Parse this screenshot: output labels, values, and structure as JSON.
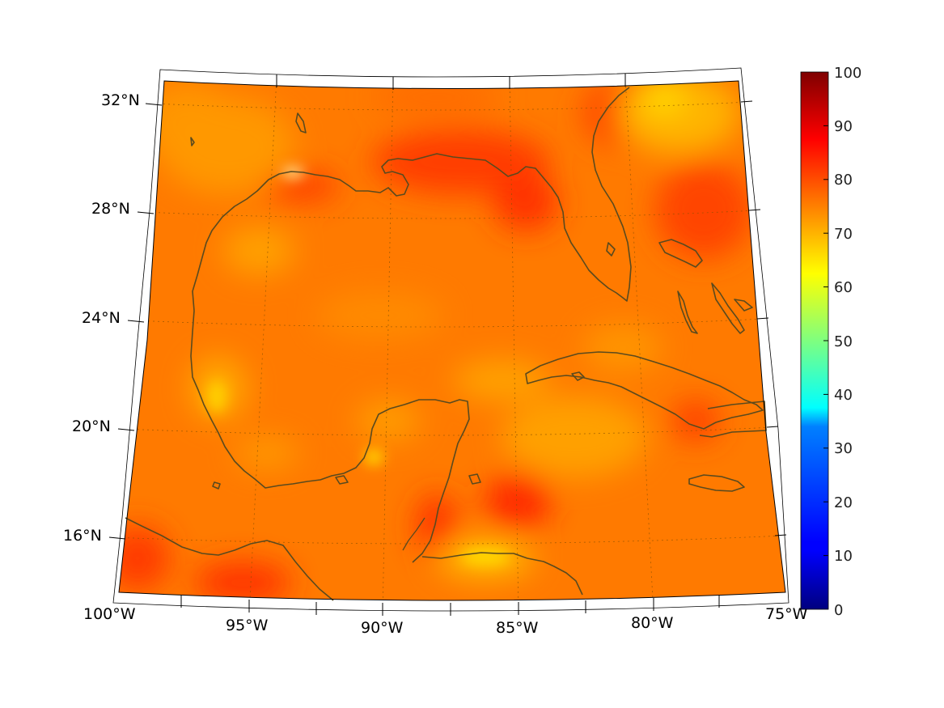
{
  "map": {
    "projection": "conic",
    "extent": {
      "lon": [
        -100,
        -75
      ],
      "lat": [
        14,
        32
      ]
    },
    "latitude_labels": [
      "32°N",
      "28°N",
      "24°N",
      "20°N",
      "16°N"
    ],
    "longitude_labels": [
      "100°W",
      "95°W",
      "90°W",
      "85°W",
      "80°W",
      "75°W"
    ],
    "grid": "dotted graticule",
    "coastline_color": "#5a4a1e",
    "field_dominant_color": "#ff7a00"
  },
  "colorbar": {
    "colormap": "jet",
    "ticks": [
      "100",
      "90",
      "80",
      "70",
      "60",
      "50",
      "40",
      "30",
      "20",
      "10",
      "0"
    ],
    "range": [
      0,
      100
    ]
  }
}
